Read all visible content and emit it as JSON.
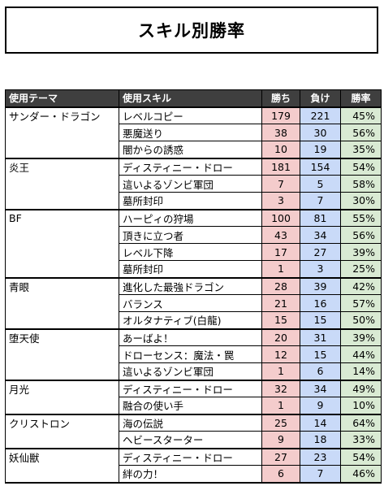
{
  "title": "スキル別勝率",
  "headers": {
    "theme": "使用テーマ",
    "skill": "使用スキル",
    "wins": "勝ち",
    "losses": "負け",
    "rate": "勝率"
  },
  "colors": {
    "header_bg": "#3f3f3f",
    "wins_bg": "#f4cccc",
    "losses_bg": "#c9daf8",
    "rate_bg": "#d9ead3"
  },
  "groups": [
    {
      "theme": "サンダー・ドラゴン",
      "rows": [
        {
          "skill": "レベルコピー",
          "wins": "179",
          "losses": "221",
          "rate": "45%"
        },
        {
          "skill": "悪魔送り",
          "wins": "38",
          "losses": "30",
          "rate": "56%"
        },
        {
          "skill": "闇からの誘惑",
          "wins": "10",
          "losses": "19",
          "rate": "35%"
        }
      ]
    },
    {
      "theme": "炎王",
      "rows": [
        {
          "skill": "ディスティニー・ドロー",
          "wins": "181",
          "losses": "154",
          "rate": "54%"
        },
        {
          "skill": "這いよるゾンビ軍団",
          "wins": "7",
          "losses": "5",
          "rate": "58%"
        },
        {
          "skill": "墓所封印",
          "wins": "3",
          "losses": "7",
          "rate": "30%"
        }
      ]
    },
    {
      "theme": "BF",
      "rows": [
        {
          "skill": "ハーピィの狩場",
          "wins": "100",
          "losses": "81",
          "rate": "55%"
        },
        {
          "skill": "頂きに立つ者",
          "wins": "43",
          "losses": "34",
          "rate": "56%"
        },
        {
          "skill": "レベル下降",
          "wins": "17",
          "losses": "27",
          "rate": "39%"
        },
        {
          "skill": "墓所封印",
          "wins": "1",
          "losses": "3",
          "rate": "25%"
        }
      ]
    },
    {
      "theme": "青眼",
      "rows": [
        {
          "skill": "進化した最強ドラゴン",
          "wins": "28",
          "losses": "39",
          "rate": "42%"
        },
        {
          "skill": "バランス",
          "wins": "21",
          "losses": "16",
          "rate": "57%"
        },
        {
          "skill": "オルタナティブ(白龍)",
          "wins": "15",
          "losses": "15",
          "rate": "50%"
        }
      ]
    },
    {
      "theme": "堕天使",
      "rows": [
        {
          "skill": "あーばよ！",
          "wins": "20",
          "losses": "31",
          "rate": "39%"
        },
        {
          "skill": "ドローセンス：魔法・罠",
          "wins": "12",
          "losses": "15",
          "rate": "44%"
        },
        {
          "skill": "這いよるゾンビ軍団",
          "wins": "1",
          "losses": "6",
          "rate": "14%"
        }
      ]
    },
    {
      "theme": "月光",
      "rows": [
        {
          "skill": "ディスティニー・ドロー",
          "wins": "32",
          "losses": "34",
          "rate": "49%"
        },
        {
          "skill": "融合の使い手",
          "wins": "1",
          "losses": "9",
          "rate": "10%"
        }
      ]
    },
    {
      "theme": "クリストロン",
      "rows": [
        {
          "skill": "海の伝説",
          "wins": "25",
          "losses": "14",
          "rate": "64%"
        },
        {
          "skill": "ヘビースターター",
          "wins": "9",
          "losses": "18",
          "rate": "33%"
        }
      ]
    },
    {
      "theme": "妖仙獣",
      "rows": [
        {
          "skill": "ディスティニー・ドロー",
          "wins": "27",
          "losses": "23",
          "rate": "54%"
        },
        {
          "skill": "絆の力！",
          "wins": "6",
          "losses": "7",
          "rate": "46%"
        }
      ]
    }
  ]
}
